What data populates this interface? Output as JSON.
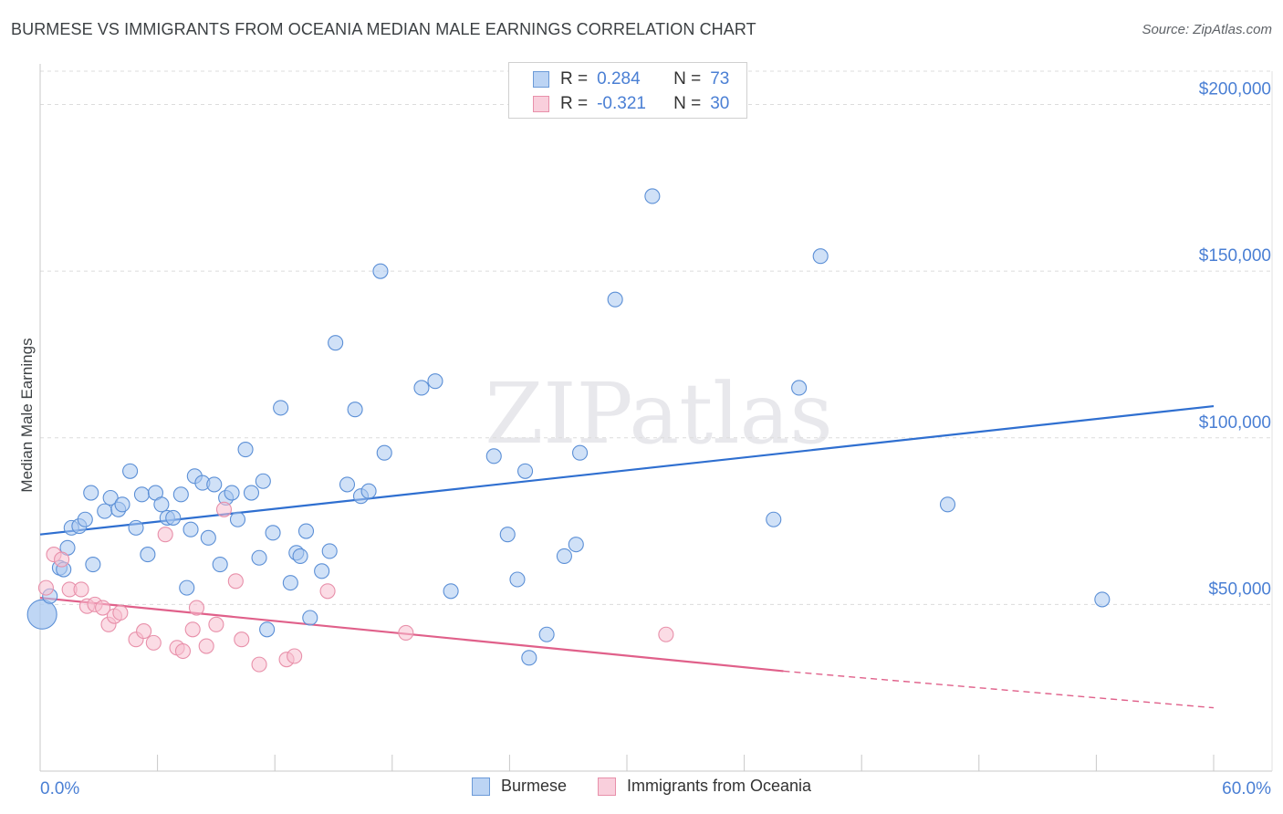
{
  "chart_data": {
    "type": "scatter",
    "title": "BURMESE VS IMMIGRANTS FROM OCEANIA MEDIAN MALE EARNINGS CORRELATION CHART",
    "source": "Source: ZipAtlas.com",
    "watermark_text": "ZIPatlas",
    "xlabel": "",
    "ylabel": "Median Male Earnings",
    "xlim": [
      0,
      60
    ],
    "ylim": [
      0,
      210000
    ],
    "x_tick_labels": {
      "min": "0.0%",
      "max": "60.0%"
    },
    "y_ticks": [
      {
        "value": 50000,
        "label": "$50,000"
      },
      {
        "value": 100000,
        "label": "$100,000"
      },
      {
        "value": 150000,
        "label": "$150,000"
      },
      {
        "value": 200000,
        "label": "$200,000"
      }
    ],
    "legend_stats": [
      {
        "r_label": "R =",
        "r_value": "0.284",
        "n_label": "N =",
        "n_value": "73"
      },
      {
        "r_label": "R =",
        "r_value": "-0.321",
        "n_label": "N =",
        "n_value": "30"
      }
    ],
    "series": [
      {
        "name": "Burmese",
        "color": "#a9c8f0",
        "stroke": "#5b8fd6",
        "line_color": "#2f6fd0",
        "trend": {
          "x0": 0,
          "y0": 71000,
          "x1": 60,
          "y1": 109500
        },
        "points": [
          [
            0.1,
            47000
          ],
          [
            0.5,
            52500
          ],
          [
            1.0,
            61000
          ],
          [
            1.2,
            60500
          ],
          [
            1.4,
            67000
          ],
          [
            1.6,
            73000
          ],
          [
            2.0,
            73500
          ],
          [
            2.3,
            75500
          ],
          [
            2.7,
            62000
          ],
          [
            2.6,
            83500
          ],
          [
            3.3,
            78000
          ],
          [
            3.6,
            82000
          ],
          [
            4.0,
            78500
          ],
          [
            4.2,
            80000
          ],
          [
            4.6,
            90000
          ],
          [
            4.9,
            73000
          ],
          [
            5.2,
            83000
          ],
          [
            5.5,
            65000
          ],
          [
            5.9,
            83500
          ],
          [
            6.2,
            80000
          ],
          [
            6.5,
            76000
          ],
          [
            6.8,
            76000
          ],
          [
            7.2,
            83000
          ],
          [
            7.5,
            55000
          ],
          [
            7.7,
            72500
          ],
          [
            7.9,
            88500
          ],
          [
            8.3,
            86500
          ],
          [
            8.6,
            70000
          ],
          [
            8.9,
            86000
          ],
          [
            9.2,
            62000
          ],
          [
            9.5,
            82000
          ],
          [
            9.8,
            83500
          ],
          [
            10.1,
            75500
          ],
          [
            10.5,
            96500
          ],
          [
            10.8,
            83500
          ],
          [
            11.2,
            64000
          ],
          [
            11.4,
            87000
          ],
          [
            11.6,
            42500
          ],
          [
            11.9,
            71500
          ],
          [
            12.3,
            109000
          ],
          [
            12.8,
            56500
          ],
          [
            13.1,
            65500
          ],
          [
            13.3,
            64500
          ],
          [
            13.6,
            72000
          ],
          [
            13.8,
            46000
          ],
          [
            14.4,
            60000
          ],
          [
            14.8,
            66000
          ],
          [
            15.1,
            128500
          ],
          [
            15.7,
            86000
          ],
          [
            16.1,
            108500
          ],
          [
            16.4,
            82500
          ],
          [
            16.8,
            84000
          ],
          [
            17.4,
            150000
          ],
          [
            17.6,
            95500
          ],
          [
            19.5,
            115000
          ],
          [
            20.2,
            117000
          ],
          [
            21.0,
            54000
          ],
          [
            23.2,
            94500
          ],
          [
            23.9,
            71000
          ],
          [
            24.4,
            57500
          ],
          [
            24.8,
            90000
          ],
          [
            25.0,
            34000
          ],
          [
            25.9,
            41000
          ],
          [
            26.8,
            64500
          ],
          [
            27.4,
            68000
          ],
          [
            27.6,
            95500
          ],
          [
            29.4,
            141500
          ],
          [
            31.3,
            172500
          ],
          [
            37.5,
            75500
          ],
          [
            38.8,
            115000
          ],
          [
            39.9,
            154500
          ],
          [
            46.4,
            80000
          ],
          [
            54.3,
            51500
          ]
        ]
      },
      {
        "name": "Immigrants from Oceania",
        "color": "#f7bfd0",
        "stroke": "#e890aa",
        "line_color": "#e0608a",
        "trend": {
          "x0": 0,
          "y0": 52000,
          "x1": 38,
          "y1": 30000
        },
        "trend_dashed": {
          "x0": 38,
          "y0": 30000,
          "x1": 60,
          "y1": 19000
        },
        "points": [
          [
            0.3,
            55000
          ],
          [
            0.7,
            65000
          ],
          [
            1.1,
            63500
          ],
          [
            1.5,
            54500
          ],
          [
            2.1,
            54500
          ],
          [
            2.4,
            49500
          ],
          [
            2.8,
            50000
          ],
          [
            3.2,
            49000
          ],
          [
            3.5,
            44000
          ],
          [
            3.8,
            46500
          ],
          [
            4.1,
            47500
          ],
          [
            4.9,
            39500
          ],
          [
            5.3,
            42000
          ],
          [
            5.8,
            38500
          ],
          [
            6.4,
            71000
          ],
          [
            7.0,
            37000
          ],
          [
            7.3,
            36000
          ],
          [
            7.8,
            42500
          ],
          [
            8.0,
            49000
          ],
          [
            8.5,
            37500
          ],
          [
            9.0,
            44000
          ],
          [
            9.4,
            78500
          ],
          [
            10.0,
            57000
          ],
          [
            10.3,
            39500
          ],
          [
            11.2,
            32000
          ],
          [
            12.6,
            33500
          ],
          [
            13.0,
            34500
          ],
          [
            14.7,
            54000
          ],
          [
            18.7,
            41500
          ],
          [
            32.0,
            41000
          ]
        ]
      }
    ],
    "legend": [
      "Burmese",
      "Immigrants from Oceania"
    ]
  }
}
